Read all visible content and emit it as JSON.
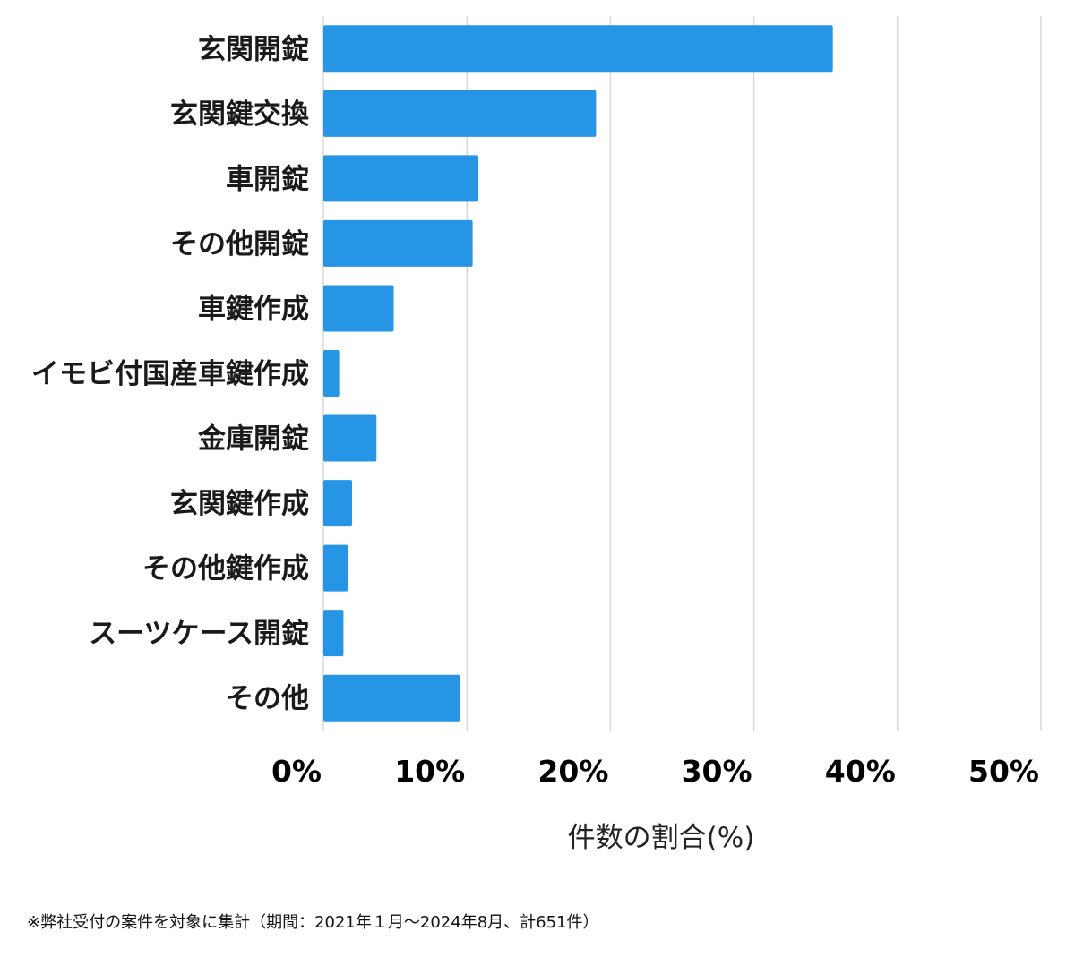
{
  "chart_data": {
    "type": "bar",
    "orientation": "horizontal",
    "categories": [
      "玄関開錠",
      "玄関鍵交換",
      "車開錠",
      "その他開錠",
      "車鍵作成",
      "イモビ付国産車鍵作成",
      "金庫開錠",
      "玄関鍵作成",
      "その他鍵作成",
      "スーツケース開錠",
      "その他"
    ],
    "values": [
      35.5,
      19.0,
      10.8,
      10.4,
      4.9,
      1.1,
      3.7,
      2.0,
      1.7,
      1.4,
      9.5
    ],
    "xlabel": "件数の割合(%)",
    "ylabel": "",
    "xlim": [
      0,
      50
    ],
    "xticks": [
      "0%",
      "10%",
      "20%",
      "30%",
      "40%",
      "50%"
    ],
    "grid": true,
    "bar_color": "#2795e6",
    "grid_color": "#d9d9d9"
  },
  "footnote": "※弊社受付の案件を対象に集計（期間：2021年１月〜2024年8月、計651件）"
}
